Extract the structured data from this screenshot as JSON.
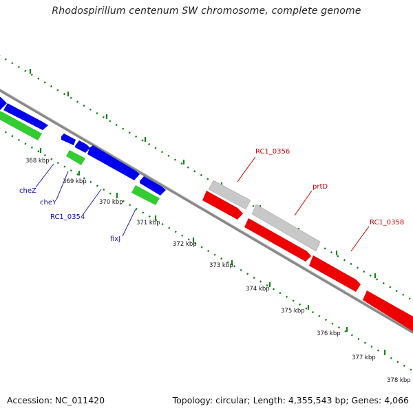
{
  "title": "Rhodospirillum centenum SW chromosome, complete genome",
  "footer": {
    "accession": "Accession: NC_011420",
    "summary": "Topology: circular; Length: 4,355,543 bp; Genes: 4,066"
  },
  "colors": {
    "blue_gene": "#0000ee",
    "green_gene": "#33cc33",
    "red_gene": "#ee0000",
    "gray_gene": "#c8c8c8",
    "backbone": "#888888",
    "tick": "#118811",
    "blue_label": "#1010aa",
    "red_label": "#cc0000"
  },
  "ticks": [
    {
      "label": "368 kbp"
    },
    {
      "label": "369 kbp"
    },
    {
      "label": "370 kbp"
    },
    {
      "label": "371 kbp"
    },
    {
      "label": "372 kbp"
    },
    {
      "label": "373 kbp"
    },
    {
      "label": "374 kbp"
    },
    {
      "label": "375 kbp"
    },
    {
      "label": "376 kbp"
    },
    {
      "label": "377 kbp"
    },
    {
      "label": "378 kbp"
    }
  ],
  "gene_labels": [
    {
      "name": "cheZ"
    },
    {
      "name": "cheY"
    },
    {
      "name": "RC1_0354"
    },
    {
      "name": "fixJ"
    },
    {
      "name": "RC1_0356"
    },
    {
      "name": "prtD"
    },
    {
      "name": "RC1_0358"
    }
  ]
}
